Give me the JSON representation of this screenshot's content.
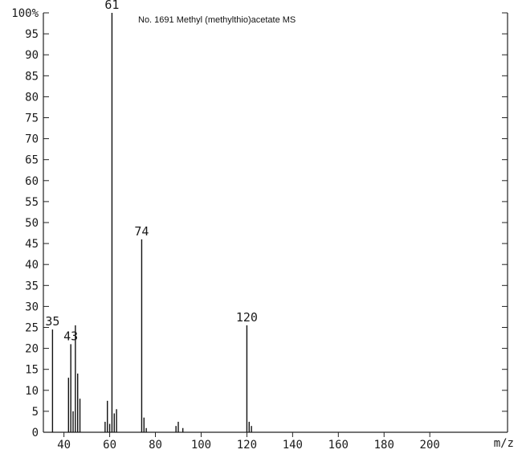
{
  "chart_data": {
    "type": "bar",
    "title": "No. 1691 Methyl (methylthio)acetate MS",
    "xlabel": "m/z",
    "ylabel": "",
    "xlim": [
      31,
      234
    ],
    "ylim": [
      0,
      100
    ],
    "x_ticks": [
      40,
      60,
      80,
      100,
      120,
      140,
      160,
      180,
      200
    ],
    "y_ticks": [
      0,
      5,
      10,
      15,
      20,
      25,
      30,
      35,
      40,
      45,
      50,
      55,
      60,
      65,
      70,
      75,
      80,
      85,
      90,
      95,
      100
    ],
    "y_tick_labels": [
      "0",
      "5",
      "10",
      "15",
      "20",
      "25",
      "30",
      "35",
      "40",
      "45",
      "50",
      "55",
      "60",
      "65",
      "70",
      "75",
      "80",
      "85",
      "90",
      "95",
      "100%"
    ],
    "peaks": [
      {
        "mz": 35,
        "intensity": 24.5
      },
      {
        "mz": 42,
        "intensity": 13
      },
      {
        "mz": 43,
        "intensity": 21
      },
      {
        "mz": 44,
        "intensity": 5
      },
      {
        "mz": 45,
        "intensity": 25.5
      },
      {
        "mz": 46,
        "intensity": 14
      },
      {
        "mz": 47,
        "intensity": 8
      },
      {
        "mz": 58,
        "intensity": 2.5
      },
      {
        "mz": 59,
        "intensity": 7.5
      },
      {
        "mz": 60,
        "intensity": 2
      },
      {
        "mz": 61,
        "intensity": 100
      },
      {
        "mz": 62,
        "intensity": 4.5
      },
      {
        "mz": 63,
        "intensity": 5.5
      },
      {
        "mz": 74,
        "intensity": 46
      },
      {
        "mz": 75,
        "intensity": 3.5
      },
      {
        "mz": 76,
        "intensity": 1
      },
      {
        "mz": 89,
        "intensity": 1.5
      },
      {
        "mz": 90,
        "intensity": 2.5
      },
      {
        "mz": 92,
        "intensity": 1
      },
      {
        "mz": 120,
        "intensity": 25.5
      },
      {
        "mz": 121,
        "intensity": 2.5
      },
      {
        "mz": 122,
        "intensity": 1.5
      }
    ],
    "peak_labels": [
      {
        "mz": 35,
        "intensity": 24.5,
        "text": "35"
      },
      {
        "mz": 43,
        "intensity": 21,
        "text": "43"
      },
      {
        "mz": 61,
        "intensity": 100,
        "text": "61"
      },
      {
        "mz": 74,
        "intensity": 46,
        "text": "74"
      },
      {
        "mz": 120,
        "intensity": 25.5,
        "text": "120"
      }
    ],
    "grid": false,
    "legend": "none"
  }
}
